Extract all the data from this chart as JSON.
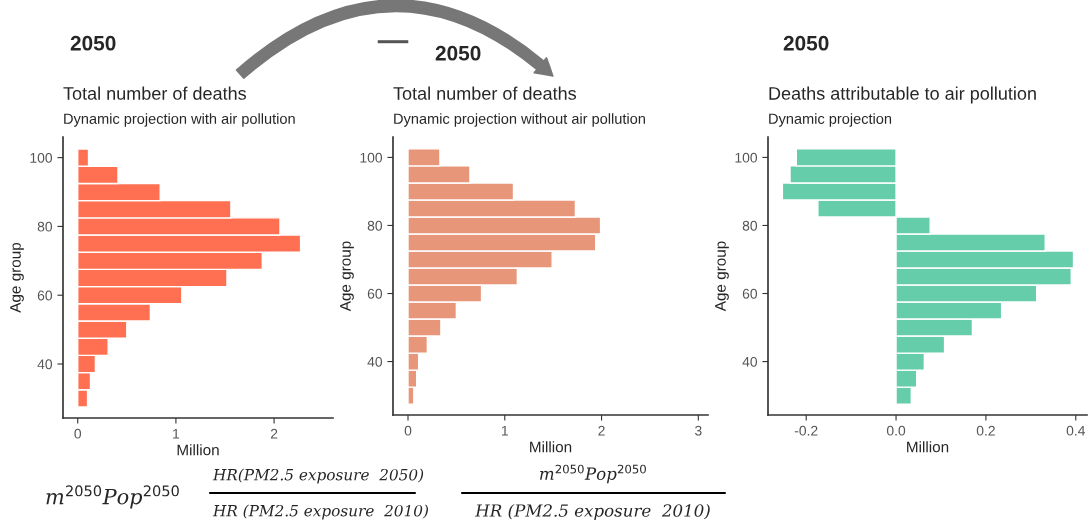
{
  "chart_data": [
    {
      "type": "histogram",
      "orientation": "horizontal",
      "title": "Total number of deaths",
      "subtitle": "Dynamic projection with air pollution",
      "xlabel": "Million",
      "ylabel": "Age group",
      "color": "#ff7052",
      "bins": [
        27.5,
        32.5,
        37.5,
        42.5,
        47.5,
        52.5,
        57.5,
        62.5,
        67.5,
        72.5,
        77.5,
        82.5,
        87.5,
        92.5,
        97.5,
        102.5
      ],
      "values": [
        0.1,
        0.13,
        0.18,
        0.31,
        0.5,
        0.74,
        1.06,
        1.52,
        1.88,
        2.27,
        2.06,
        1.56,
        0.84,
        0.41,
        0.11
      ],
      "xlim": [
        -0.15,
        2.6
      ],
      "xticks": [
        0,
        1,
        2
      ],
      "ylim": [
        24.3,
        106
      ],
      "yticks": [
        40,
        60,
        80,
        100
      ],
      "grid": false,
      "annotations": [
        "2050",
        "m$^{2050}$Pop$^{2050}$",
        "HR(PM2.5 exposure  2050)",
        "HR (PM2.5 exposure  2010)"
      ]
    },
    {
      "type": "histogram",
      "orientation": "horizontal",
      "title": "Total number of deaths",
      "subtitle": "Dynamic projection without air pollution",
      "xlabel": "Million",
      "ylabel": "Age group",
      "color": "#e8967a",
      "bins": [
        27.5,
        32.5,
        37.5,
        42.5,
        47.5,
        52.5,
        57.5,
        62.5,
        67.5,
        72.5,
        77.5,
        82.5,
        87.5,
        92.5,
        97.5,
        102.5
      ],
      "values": [
        0.06,
        0.09,
        0.11,
        0.2,
        0.34,
        0.5,
        0.76,
        1.13,
        1.49,
        1.94,
        1.99,
        1.73,
        1.09,
        0.64,
        0.33
      ],
      "xlim": [
        -0.155,
        3.1
      ],
      "xticks": [
        0,
        1,
        2,
        3
      ],
      "ylim": [
        24.3,
        106
      ],
      "yticks": [
        40,
        60,
        80,
        100
      ],
      "grid": false,
      "annotations": [
        "2050",
        "m$^{2050}$Pop$^{2050}$",
        "HR (PM2.5 exposure  2010)",
        "—"
      ]
    },
    {
      "type": "histogram",
      "orientation": "horizontal",
      "title": "Deaths attributable to air pollution",
      "subtitle": "Dynamic projection",
      "xlabel": "Million",
      "ylabel": "Age group",
      "color": "#66cdaa",
      "bins": [
        27.5,
        32.5,
        37.5,
        42.5,
        47.5,
        52.5,
        57.5,
        62.5,
        67.5,
        72.5,
        77.5,
        82.5,
        87.5,
        92.5,
        97.5,
        102.5
      ],
      "values": [
        0.034,
        0.046,
        0.063,
        0.108,
        0.17,
        0.235,
        0.313,
        0.39,
        0.395,
        0.332,
        0.076,
        -0.174,
        -0.253,
        -0.236,
        -0.222
      ],
      "xlim": [
        -0.285,
        0.425
      ],
      "xticks": [
        {
          "value": -0.2,
          "label": "-0.2"
        },
        {
          "value": 0,
          "label": "0.0"
        },
        {
          "value": 0.2,
          "label": "0.2"
        },
        {
          "value": 0.4,
          "label": "0.4"
        }
      ],
      "ylim": [
        24.3,
        106
      ],
      "yticks": [
        40,
        60,
        80,
        100
      ],
      "grid": false,
      "annotations": [
        "2050"
      ]
    }
  ]
}
